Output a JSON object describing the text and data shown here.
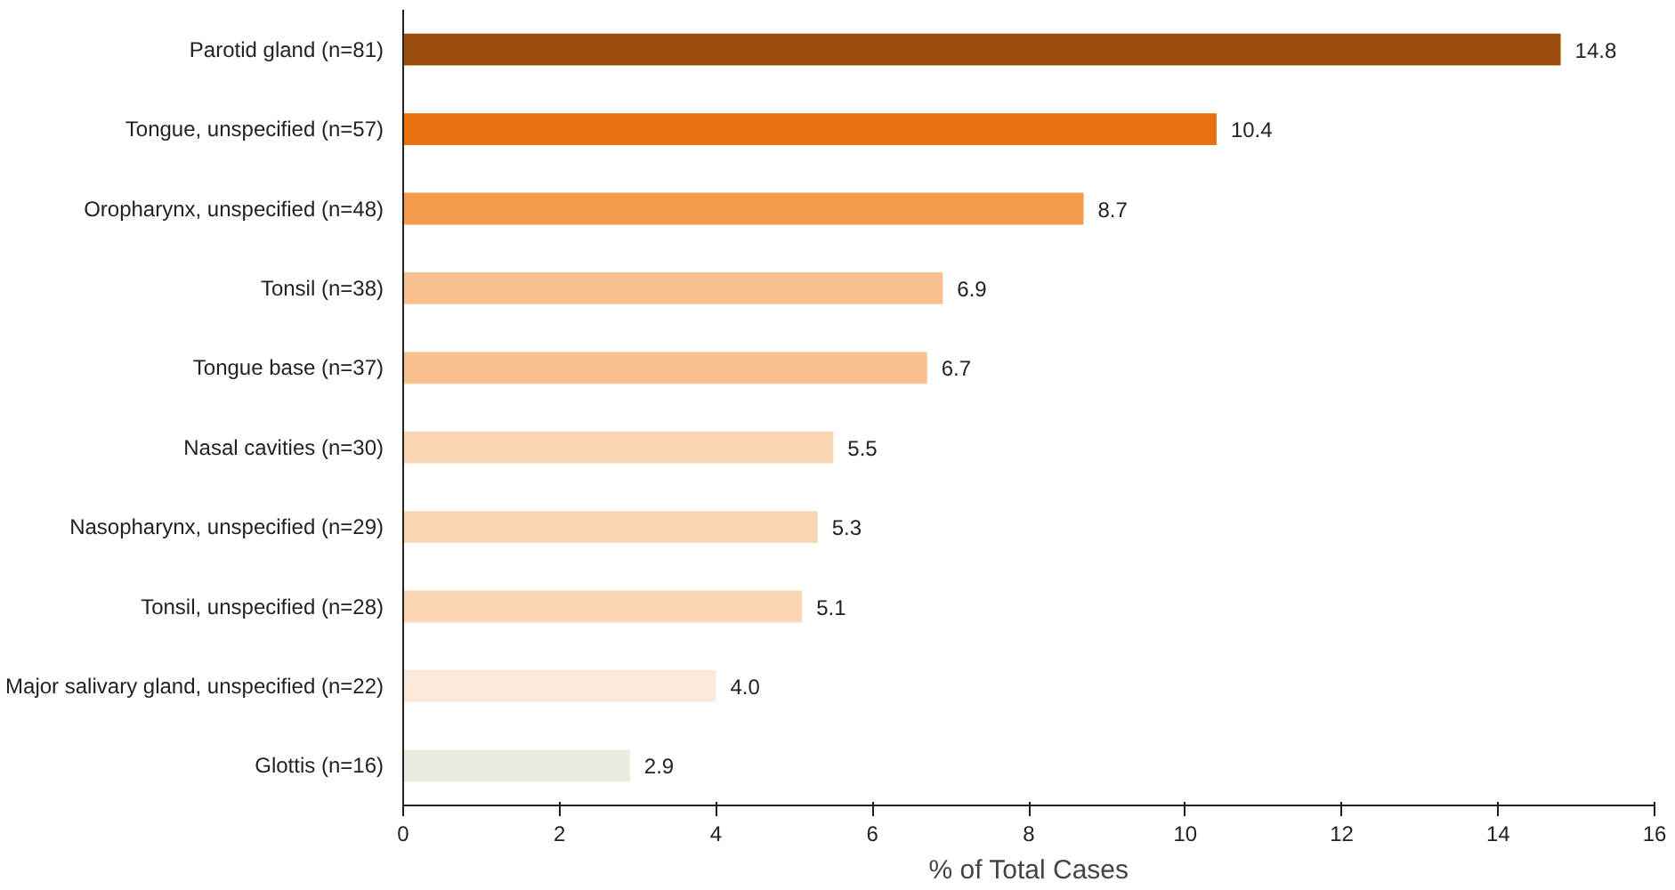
{
  "chart_data": {
    "type": "bar",
    "orientation": "horizontal",
    "xlabel": "% of Total Cases",
    "categories": [
      "Parotid gland (n=81)",
      "Tongue, unspecified (n=57)",
      "Oropharynx, unspecified (n=48)",
      "Tonsil (n=38)",
      "Tongue base (n=37)",
      "Nasal cavities (n=30)",
      "Nasopharynx, unspecified (n=29)",
      "Tonsil, unspecified (n=28)",
      "Major salivary gland, unspecified (n=22)",
      "Glottis (n=16)"
    ],
    "values": [
      14.8,
      10.4,
      8.7,
      6.9,
      6.7,
      5.5,
      5.3,
      5.1,
      4.0,
      2.9
    ],
    "colors": [
      "#9c4f0c",
      "#e8710f",
      "#f59b4c",
      "#f9c18f",
      "#f9c18f",
      "#fbd6b4",
      "#fbd6b4",
      "#fbd6b4",
      "#fde9da",
      "#ecebe0"
    ],
    "value_labels": [
      "14.8",
      "10.4",
      "8.7",
      "6.9",
      "6.7",
      "5.5",
      "5.3",
      "5.1",
      "4.0",
      "2.9"
    ],
    "xlim": [
      0,
      16
    ],
    "xticks": [
      0,
      2,
      4,
      6,
      8,
      10,
      12,
      14,
      16
    ],
    "grid": false
  }
}
